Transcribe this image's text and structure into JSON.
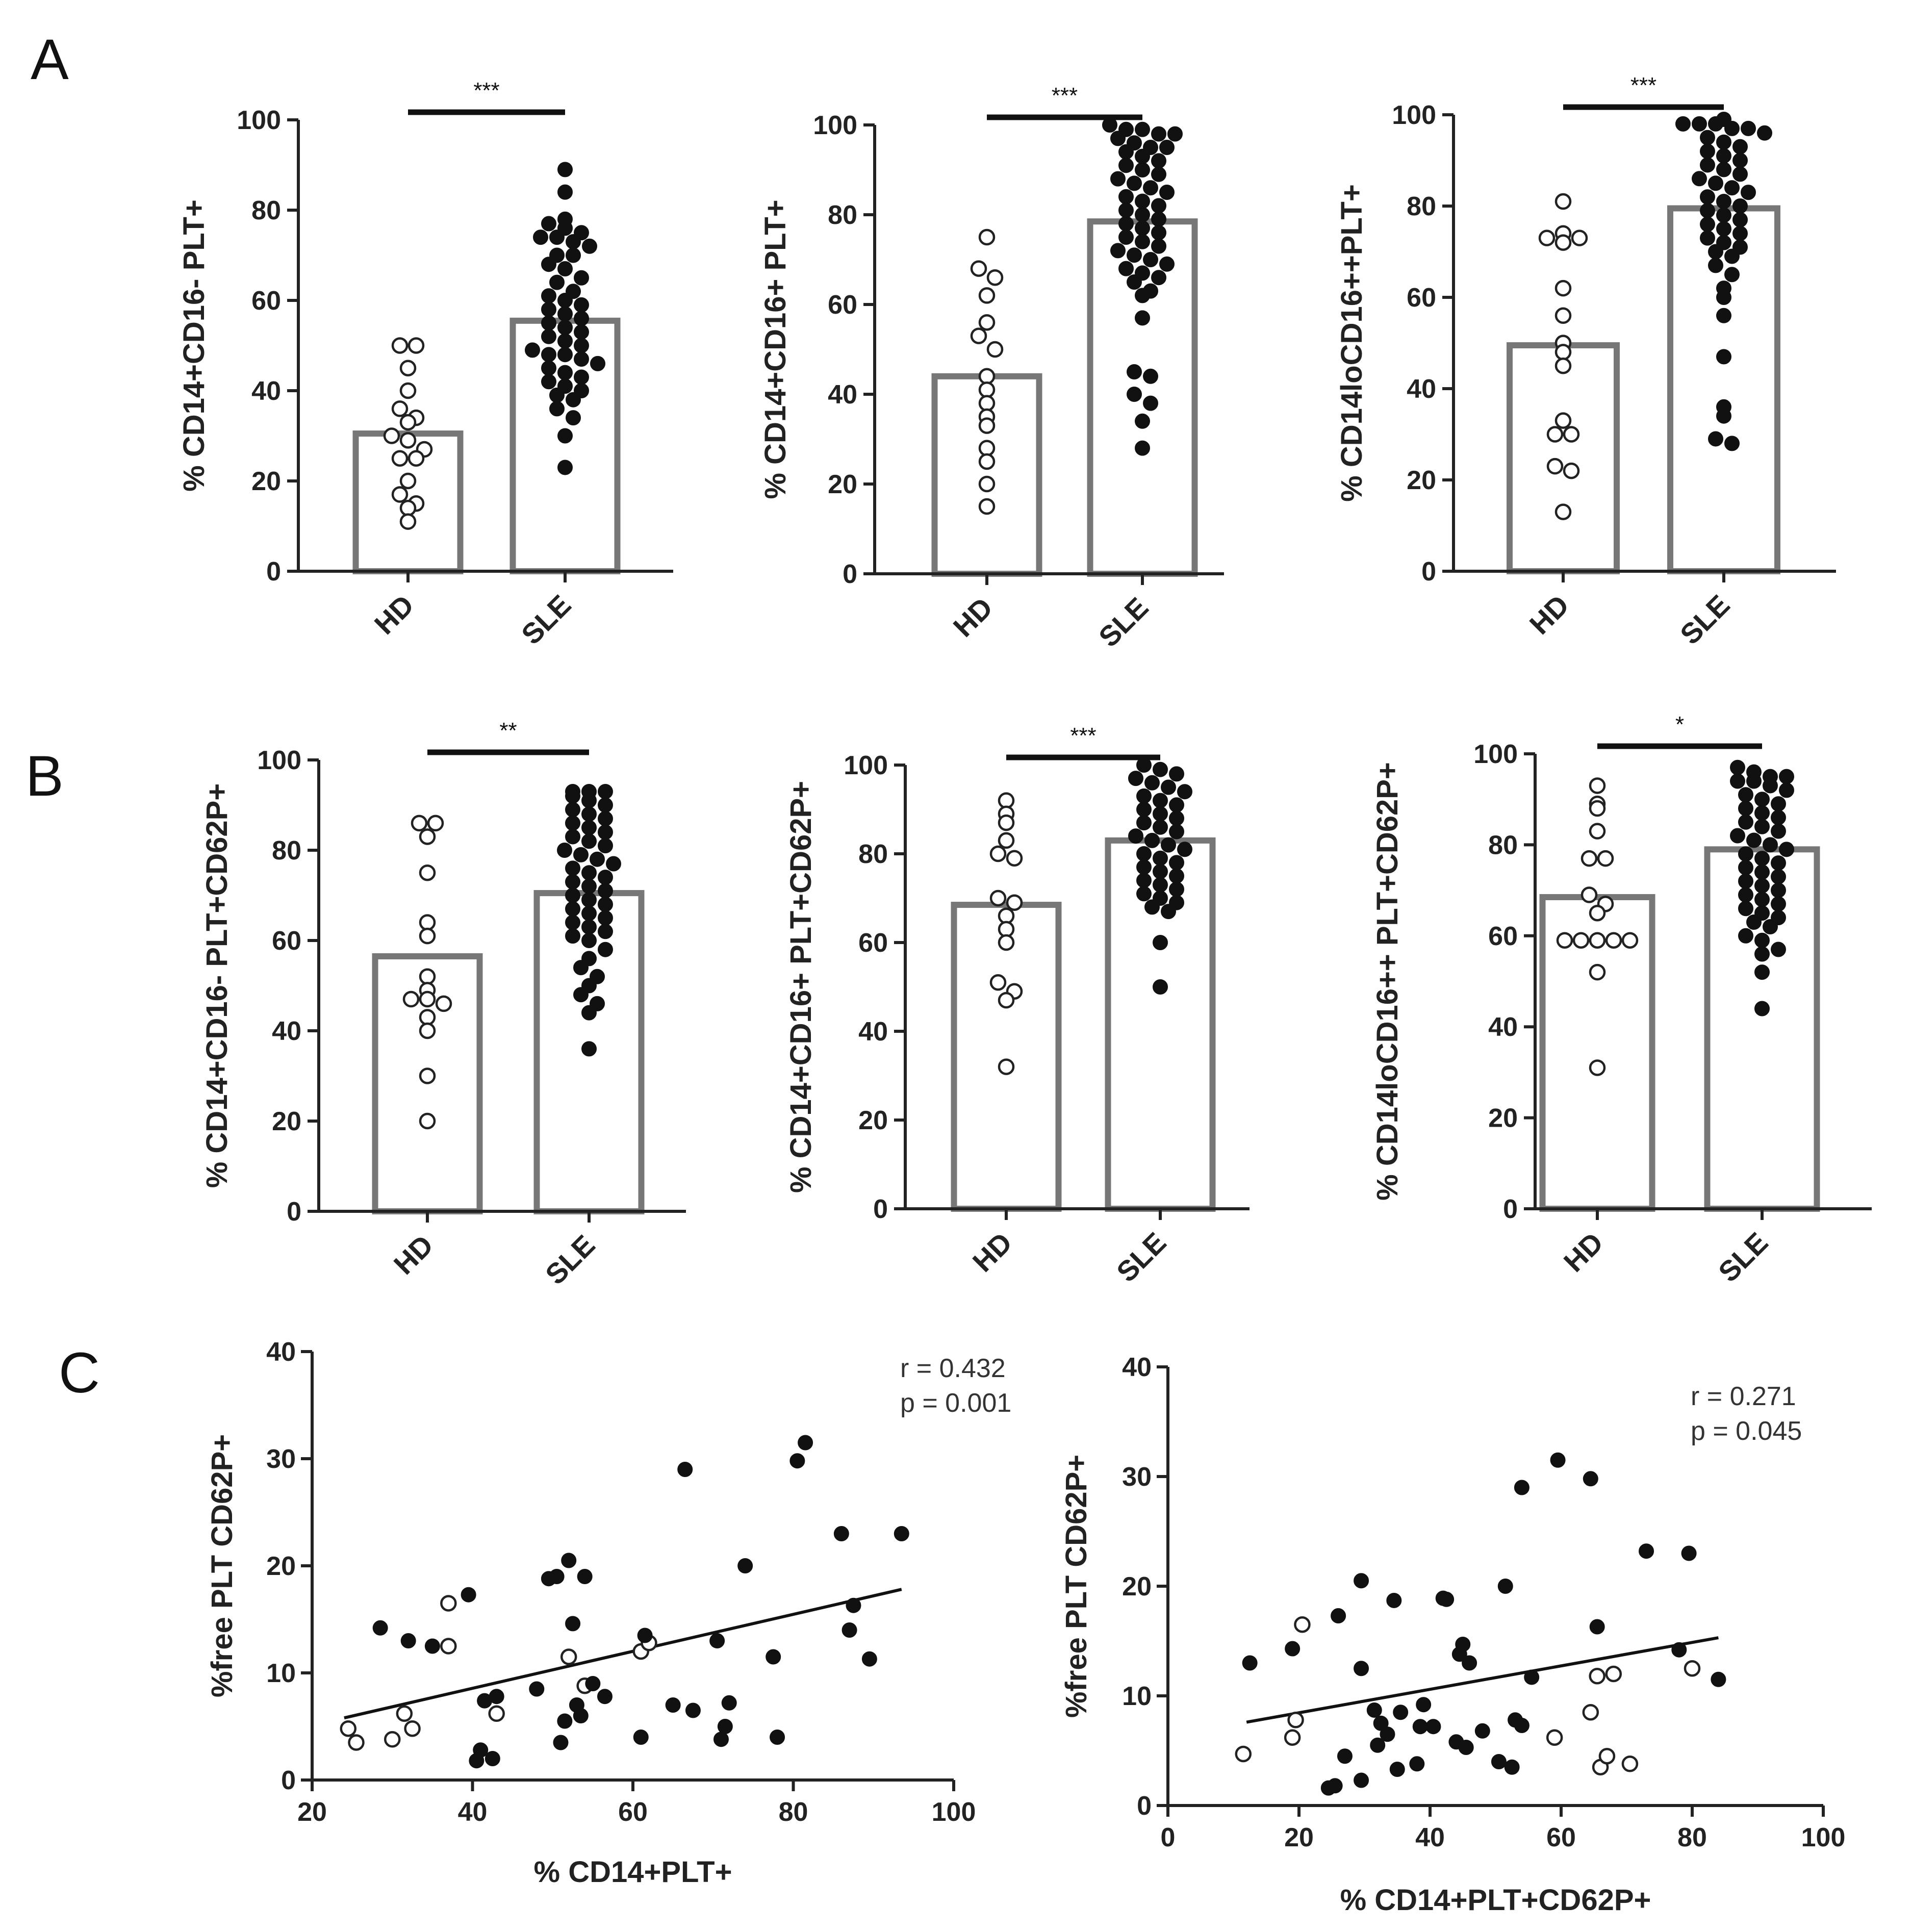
{
  "panels": {
    "A": "A",
    "B": "B",
    "C": "C"
  },
  "chart_data": [
    {
      "type": "bar",
      "panel": "A",
      "ylabel": "% CD14+CD16- PLT+",
      "categories": [
        "HD",
        "SLE"
      ],
      "values": [
        30.5,
        55.5
      ],
      "ylim": [
        0,
        100
      ],
      "yticks": [
        0,
        20,
        40,
        60,
        80,
        100
      ],
      "significance": "***",
      "points": {
        "HD": [
          50,
          50,
          45,
          40,
          36,
          34,
          33,
          30,
          29,
          27,
          25,
          25,
          20,
          17,
          15,
          14,
          11
        ],
        "SLE": [
          89,
          84,
          78,
          77,
          76,
          75,
          74,
          74,
          73,
          72,
          70,
          70,
          68,
          67,
          65,
          64,
          62,
          61,
          60,
          59,
          58,
          57,
          56,
          55,
          54,
          53,
          52,
          51,
          50,
          49,
          48,
          48,
          47,
          46,
          45,
          44,
          43,
          42,
          41,
          40,
          39,
          38,
          36,
          34,
          30,
          23
        ]
      }
    },
    {
      "type": "bar",
      "panel": "A",
      "ylabel": "% CD14+CD16+ PLT+",
      "categories": [
        "HD",
        "SLE"
      ],
      "values": [
        44,
        78.5
      ],
      "ylim": [
        0,
        100
      ],
      "yticks": [
        0,
        20,
        40,
        60,
        80,
        100
      ],
      "significance": "***",
      "points": {
        "HD": [
          75,
          68,
          66,
          62,
          56,
          53,
          50,
          44,
          41,
          38,
          35,
          33,
          28,
          25,
          20,
          15
        ],
        "SLE": [
          100,
          99,
          99,
          98,
          98,
          97,
          96,
          95,
          95,
          94,
          93,
          92,
          91,
          90,
          89,
          88,
          87,
          86,
          85,
          84,
          83,
          82,
          81,
          80,
          79,
          78,
          77,
          76,
          75,
          74,
          73,
          72,
          71,
          70,
          69,
          68,
          67,
          66,
          65,
          63,
          62,
          57,
          45,
          44,
          40,
          38,
          34,
          28
        ]
      }
    },
    {
      "type": "bar",
      "panel": "A",
      "ylabel": "% CD14loCD16++PLT+",
      "categories": [
        "HD",
        "SLE"
      ],
      "values": [
        49.5,
        79.5
      ],
      "ylim": [
        0,
        100
      ],
      "yticks": [
        0,
        20,
        40,
        60,
        80,
        100
      ],
      "significance": "***",
      "points": {
        "HD": [
          81,
          74,
          73,
          72,
          73,
          62,
          56,
          50,
          48,
          45,
          33,
          30,
          30,
          23,
          22,
          13
        ],
        "SLE": [
          99,
          98,
          98,
          98,
          97,
          97,
          96,
          95,
          94,
          93,
          92,
          91,
          90,
          89,
          88,
          87,
          86,
          85,
          84,
          83,
          82,
          81,
          80,
          79,
          78,
          77,
          76,
          75,
          74,
          73,
          72,
          71,
          70,
          69,
          67,
          65,
          62,
          60,
          56,
          47,
          36,
          34,
          29,
          28
        ]
      }
    },
    {
      "type": "bar",
      "panel": "B",
      "ylabel": "% CD14+CD16- PLT+CD62P+",
      "categories": [
        "HD",
        "SLE"
      ],
      "values": [
        56.5,
        70.5
      ],
      "ylim": [
        0,
        100
      ],
      "yticks": [
        0,
        20,
        40,
        60,
        80,
        100
      ],
      "significance": "**",
      "points": {
        "HD": [
          86,
          86,
          83,
          75,
          64,
          61,
          52,
          49,
          47,
          47,
          46,
          43,
          40,
          30,
          20
        ],
        "SLE": [
          93,
          93,
          93,
          92,
          91,
          90,
          89,
          88,
          87,
          86,
          85,
          84,
          83,
          82,
          81,
          80,
          79,
          78,
          77,
          76,
          75,
          74,
          73,
          72,
          71,
          70,
          69,
          68,
          67,
          66,
          65,
          64,
          63,
          62,
          61,
          60,
          58,
          56,
          54,
          52,
          50,
          48,
          46,
          44,
          36
        ]
      }
    },
    {
      "type": "bar",
      "panel": "B",
      "ylabel": "% CD14+CD16+ PLT+CD62P+",
      "categories": [
        "HD",
        "SLE"
      ],
      "values": [
        68.5,
        83
      ],
      "ylim": [
        0,
        100
      ],
      "yticks": [
        0,
        20,
        40,
        60,
        80,
        100
      ],
      "significance": "***",
      "points": {
        "HD": [
          92,
          89,
          87,
          83,
          80,
          79,
          70,
          69,
          66,
          63,
          60,
          51,
          49,
          47,
          32
        ],
        "SLE": [
          100,
          99,
          98,
          97,
          96,
          95,
          94,
          93,
          92,
          91,
          90,
          89,
          88,
          87,
          86,
          85,
          84,
          83,
          82,
          81,
          80,
          79,
          78,
          77,
          76,
          75,
          74,
          73,
          72,
          71,
          70,
          69,
          68,
          67,
          60,
          50
        ]
      }
    },
    {
      "type": "bar",
      "panel": "B",
      "ylabel": "% CD14loCD16++ PLT+CD62P+",
      "categories": [
        "HD",
        "SLE"
      ],
      "values": [
        68.5,
        79
      ],
      "ylim": [
        0,
        100
      ],
      "yticks": [
        0,
        20,
        40,
        60,
        80,
        100
      ],
      "significance": "*",
      "points": {
        "HD": [
          93,
          89,
          88,
          83,
          77,
          77,
          69,
          67,
          65,
          59,
          59,
          59,
          59,
          59,
          52,
          31
        ],
        "SLE": [
          97,
          96,
          95,
          95,
          94,
          94,
          93,
          92,
          91,
          90,
          89,
          88,
          87,
          86,
          85,
          84,
          83,
          82,
          81,
          80,
          79,
          78,
          77,
          76,
          75,
          74,
          73,
          72,
          71,
          70,
          69,
          68,
          67,
          66,
          65,
          64,
          63,
          62,
          60,
          59,
          57,
          56,
          52,
          44
        ]
      }
    },
    {
      "type": "scatter",
      "panel": "C",
      "xlabel": "% CD14+PLT+",
      "ylabel": "%free PLT CD62P+",
      "xlim": [
        20,
        100
      ],
      "ylim": [
        0,
        40
      ],
      "xticks": [
        20,
        40,
        60,
        80,
        100
      ],
      "yticks": [
        0,
        10,
        20,
        30,
        40
      ],
      "r": "r = 0.432",
      "p": "p = 0.001",
      "fit": {
        "x": [
          24,
          93.5
        ],
        "y": [
          5.8,
          17.8
        ]
      },
      "series": [
        {
          "marker": "open",
          "points": [
            [
              24.5,
              4.8
            ],
            [
              25.5,
              3.5
            ],
            [
              30,
              3.8
            ],
            [
              31.5,
              6.2
            ],
            [
              32.5,
              4.8
            ],
            [
              37,
              16.5
            ],
            [
              37,
              12.5
            ],
            [
              43,
              6.2
            ],
            [
              52,
              11.5
            ],
            [
              54,
              8.8
            ],
            [
              61,
              12
            ],
            [
              62,
              12.8
            ]
          ]
        },
        {
          "marker": "filled",
          "points": [
            [
              28.5,
              14.2
            ],
            [
              32,
              13
            ],
            [
              35,
              12.5
            ],
            [
              39.5,
              17.3
            ],
            [
              40.5,
              1.8
            ],
            [
              41,
              2.8
            ],
            [
              41.5,
              7.4
            ],
            [
              42.5,
              2
            ],
            [
              43,
              7.8
            ],
            [
              48,
              8.5
            ],
            [
              49.5,
              18.8
            ],
            [
              50.5,
              19
            ],
            [
              51,
              3.5
            ],
            [
              51.5,
              5.5
            ],
            [
              52,
              20.5
            ],
            [
              52.5,
              14.6
            ],
            [
              53,
              7
            ],
            [
              53.5,
              6
            ],
            [
              54,
              19
            ],
            [
              55,
              9
            ],
            [
              56.5,
              7.8
            ],
            [
              61,
              4
            ],
            [
              61.5,
              13.5
            ],
            [
              65,
              7
            ],
            [
              66.5,
              29
            ],
            [
              67.5,
              6.5
            ],
            [
              70.5,
              13
            ],
            [
              71,
              3.8
            ],
            [
              71.5,
              5
            ],
            [
              72,
              7.2
            ],
            [
              74,
              20
            ],
            [
              77.5,
              11.5
            ],
            [
              78,
              4
            ],
            [
              80.5,
              29.8
            ],
            [
              81.5,
              31.5
            ],
            [
              86,
              23
            ],
            [
              87,
              14
            ],
            [
              87.5,
              16.3
            ],
            [
              89.5,
              11.3
            ],
            [
              93.5,
              23
            ]
          ]
        }
      ]
    },
    {
      "type": "scatter",
      "panel": "C",
      "xlabel": "% CD14+PLT+CD62P+",
      "ylabel": "%free PLT CD62P+",
      "xlim": [
        0,
        100
      ],
      "ylim": [
        0,
        40
      ],
      "xticks": [
        0,
        20,
        40,
        60,
        80,
        100
      ],
      "yticks": [
        0,
        10,
        20,
        30,
        40
      ],
      "r": "r = 0.271",
      "p": "p = 0.045",
      "fit": {
        "x": [
          12,
          84
        ],
        "y": [
          7.6,
          15.3
        ]
      },
      "series": [
        {
          "marker": "open",
          "points": [
            [
              11.5,
              4.7
            ],
            [
              19,
              6.2
            ],
            [
              19.5,
              7.8
            ],
            [
              20.5,
              16.5
            ],
            [
              59,
              6.2
            ],
            [
              64.5,
              8.5
            ],
            [
              65.5,
              11.8
            ],
            [
              66,
              3.5
            ],
            [
              67,
              4.5
            ],
            [
              68,
              12
            ],
            [
              70.5,
              3.8
            ],
            [
              80,
              12.5
            ]
          ]
        },
        {
          "marker": "filled",
          "points": [
            [
              12.5,
              13
            ],
            [
              19,
              14.3
            ],
            [
              24.5,
              1.6
            ],
            [
              25.5,
              1.8
            ],
            [
              26,
              17.3
            ],
            [
              27,
              4.5
            ],
            [
              29.5,
              2.3
            ],
            [
              29.5,
              12.5
            ],
            [
              29.5,
              20.5
            ],
            [
              31.5,
              8.7
            ],
            [
              32,
              5.5
            ],
            [
              32.5,
              7.5
            ],
            [
              33.5,
              6.5
            ],
            [
              34.5,
              18.7
            ],
            [
              35,
              3.3
            ],
            [
              35.5,
              8.5
            ],
            [
              38,
              3.8
            ],
            [
              38.5,
              7.2
            ],
            [
              39,
              9.2
            ],
            [
              40.5,
              7.2
            ],
            [
              42,
              18.9
            ],
            [
              42.5,
              18.8
            ],
            [
              44,
              5.8
            ],
            [
              44.5,
              13.8
            ],
            [
              45,
              14.7
            ],
            [
              45.5,
              5.3
            ],
            [
              46,
              13
            ],
            [
              48,
              6.8
            ],
            [
              50.5,
              4
            ],
            [
              51.5,
              20
            ],
            [
              52.5,
              3.5
            ],
            [
              53,
              7.8
            ],
            [
              54,
              29
            ],
            [
              54,
              7.3
            ],
            [
              55.5,
              11.7
            ],
            [
              59.5,
              31.5
            ],
            [
              64.5,
              29.8
            ],
            [
              65.5,
              16.3
            ],
            [
              73,
              23.2
            ],
            [
              78,
              14.2
            ],
            [
              79.5,
              23
            ],
            [
              84,
              11.5
            ]
          ]
        }
      ]
    }
  ]
}
